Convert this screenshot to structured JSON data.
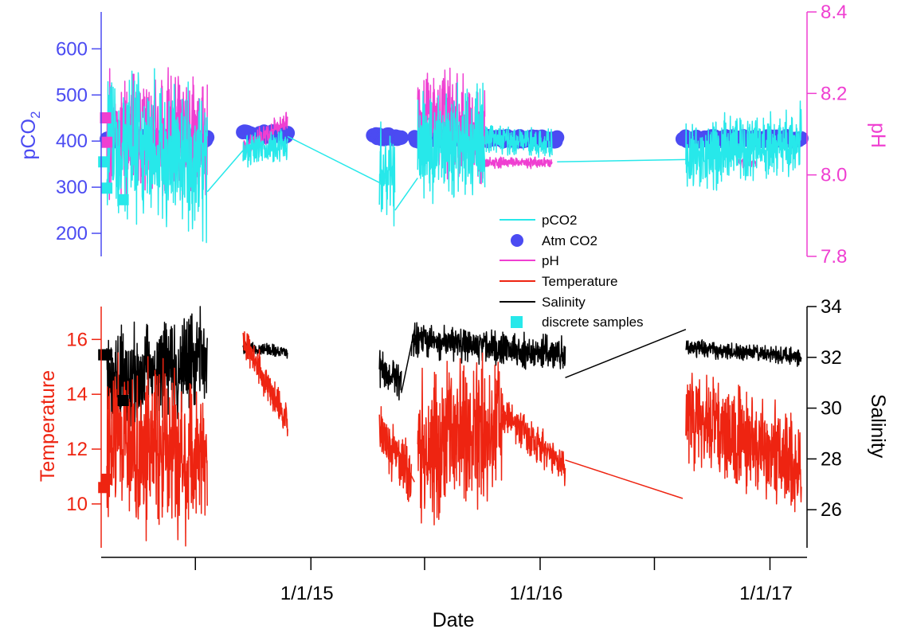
{
  "chart_data": [
    {
      "panel": "top",
      "type": "line",
      "x_unit": "date",
      "yleft": {
        "label_main": "pCO",
        "label_sub": "2",
        "ylim": [
          150,
          680
        ],
        "ticks": [
          200,
          300,
          400,
          500,
          600
        ],
        "color": "#4b4bf2"
      },
      "yright": {
        "label": "pH",
        "ylim": [
          7.8,
          8.4
        ],
        "ticks": [
          "7.8",
          "8.0",
          "8.2",
          "8.4"
        ],
        "color": "#ef3fd1"
      },
      "series": [
        {
          "name": "pCO2",
          "axis": "left",
          "color": "#27e8ea",
          "segments": [
            {
              "start": "2014-02-10",
              "end": "2014-07-20",
              "mean": 370,
              "amp": 200,
              "trend": -40
            },
            {
              "start": "2014-09-15",
              "end": "2014-11-25",
              "mean": 385,
              "amp": 40,
              "trend": 20
            },
            {
              "start": "2015-04-20",
              "end": "2015-05-15",
              "mean": 330,
              "amp": 110,
              "trend": -20
            },
            {
              "start": "2015-06-20",
              "end": "2015-10-05",
              "mean": 390,
              "amp": 150,
              "trend": 10
            },
            {
              "start": "2015-10-05",
              "end": "2016-01-20",
              "mean": 400,
              "amp": 40,
              "trend": -20
            },
            {
              "start": "2016-08-20",
              "end": "2017-02-20",
              "mean": 385,
              "amp": 90,
              "trend": 30
            }
          ]
        },
        {
          "name": "Atm CO2",
          "axis": "left",
          "color": "#4b4bf2",
          "marker": "circle",
          "segments": [
            {
              "start": "2014-02-10",
              "end": "2014-07-20",
              "value": 405
            },
            {
              "start": "2014-09-15",
              "end": "2014-11-25",
              "value": 415
            },
            {
              "start": "2015-04-10",
              "end": "2015-05-25",
              "value": 410
            },
            {
              "start": "2015-06-15",
              "end": "2016-01-28",
              "value": 405
            },
            {
              "start": "2016-08-15",
              "end": "2017-02-20",
              "value": 405
            }
          ]
        },
        {
          "name": "pH",
          "axis": "right",
          "color": "#ef3fd1",
          "segments": [
            {
              "start": "2014-02-10",
              "end": "2014-07-20",
              "mean": 8.1,
              "amp": 0.18,
              "trend": 0
            },
            {
              "start": "2014-09-15",
              "end": "2014-11-25",
              "mean": 8.1,
              "amp": 0.03,
              "trend": 0.07
            },
            {
              "start": "2015-06-20",
              "end": "2015-10-05",
              "mean": 8.13,
              "amp": 0.15,
              "trend": -0.05
            },
            {
              "start": "2015-10-05",
              "end": "2016-01-20",
              "mean": 8.03,
              "amp": 0.015,
              "trend": 0
            },
            {
              "start": "2016-11-10",
              "end": "2016-12-10",
              "mean": 8.03,
              "amp": 0.015,
              "trend": 0
            }
          ]
        }
      ]
    },
    {
      "panel": "bottom",
      "type": "line",
      "x_unit": "date",
      "yleft": {
        "label": "Temperature",
        "ylim": [
          8.4,
          17.2
        ],
        "ticks": [
          10,
          12,
          14,
          16
        ],
        "color": "#ee2411"
      },
      "yright": {
        "label": "Salinity",
        "ylim": [
          24.5,
          34
        ],
        "ticks": [
          26,
          28,
          30,
          32,
          34
        ],
        "color": "#000000"
      },
      "series": [
        {
          "name": "Temperature",
          "axis": "left",
          "color": "#ee2411",
          "segments": [
            {
              "start": "2014-02-10",
              "end": "2014-07-20",
              "mean": 12,
              "amp": 3.5,
              "trend": -1
            },
            {
              "start": "2014-09-15",
              "end": "2014-11-25",
              "mean": 14.5,
              "amp": 0.8,
              "trend": -3
            },
            {
              "start": "2015-04-20",
              "end": "2015-06-10",
              "mean": 11.8,
              "amp": 1.3,
              "trend": -1.5
            },
            {
              "start": "2015-06-20",
              "end": "2015-11-01",
              "mean": 12.5,
              "amp": 3.2,
              "trend": 1
            },
            {
              "start": "2015-11-01",
              "end": "2016-02-10",
              "mean": 12.3,
              "amp": 0.8,
              "trend": -2
            },
            {
              "start": "2016-08-20",
              "end": "2017-02-20",
              "mean": 12.3,
              "amp": 2.2,
              "trend": -2
            }
          ]
        },
        {
          "name": "Salinity",
          "axis": "right",
          "color": "#000000",
          "segments": [
            {
              "start": "2014-02-10",
              "end": "2014-07-20",
              "mean": 31.5,
              "amp": 2.3,
              "trend": 1.2
            },
            {
              "start": "2014-09-15",
              "end": "2014-11-25",
              "mean": 32.3,
              "amp": 0.3,
              "trend": -0.2
            },
            {
              "start": "2015-04-20",
              "end": "2015-05-25",
              "mean": 31.2,
              "amp": 0.9,
              "trend": -0.5
            },
            {
              "start": "2015-06-10",
              "end": "2016-02-10",
              "mean": 32.4,
              "amp": 0.8,
              "trend": -0.6
            },
            {
              "start": "2016-08-20",
              "end": "2017-02-20",
              "mean": 32.2,
              "amp": 0.4,
              "trend": -0.4
            }
          ]
        }
      ],
      "connectors": [
        {
          "series": "Salinity",
          "points": [
            [
              "2015-05-25",
              30.6
            ],
            [
              "2015-06-15",
              33.1
            ]
          ]
        },
        {
          "series": "Salinity",
          "points": [
            [
              "2016-02-10",
              31.2
            ],
            [
              "2016-08-20",
              33.1
            ]
          ]
        },
        {
          "series": "Temperature",
          "points": [
            [
              "2015-05-15",
              12.2
            ],
            [
              "2015-06-15",
              10.8
            ]
          ]
        },
        {
          "series": "Temperature",
          "points": [
            [
              "2016-02-10",
              11.6
            ],
            [
              "2016-08-15",
              10.2
            ]
          ]
        }
      ]
    }
  ],
  "discrete_samples": {
    "name": "discrete samples",
    "color": "#27e8ea",
    "pco2": [
      [
        "2014-02-05",
        355
      ],
      [
        "2014-02-10",
        298
      ],
      [
        "2014-03-08",
        273
      ]
    ],
    "ph": [
      [
        "2014-02-08",
        8.14
      ],
      [
        "2014-02-10",
        8.08
      ]
    ],
    "temperature": [
      [
        "2014-02-05",
        10.6
      ],
      [
        "2014-02-10",
        10.9
      ]
    ],
    "salinity": [
      [
        "2014-02-05",
        32.1
      ],
      [
        "2014-02-10",
        32.1
      ],
      [
        "2014-03-08",
        30.3
      ]
    ]
  },
  "x_axis": {
    "label": "Date",
    "range": [
      "2014-02-01",
      "2017-03-01"
    ],
    "major_ticks": [
      "1/1/15",
      "1/1/16",
      "1/1/17"
    ],
    "major_tick_dates": [
      "2015-01-01",
      "2016-01-01",
      "2017-01-01"
    ],
    "minor_tick_dates": [
      "2014-07-01",
      "2015-07-01",
      "2016-07-01"
    ]
  },
  "legend": {
    "position": "center",
    "entries": [
      {
        "label": "pCO2",
        "kind": "line",
        "color": "#27e8ea"
      },
      {
        "label": "Atm CO2",
        "kind": "circle",
        "color": "#4b4bf2"
      },
      {
        "label": "pH",
        "kind": "line",
        "color": "#ef3fd1"
      },
      {
        "label": "Temperature",
        "kind": "line",
        "color": "#ee2411"
      },
      {
        "label": "Salinity",
        "kind": "line",
        "color": "#000000"
      },
      {
        "label": "discrete samples",
        "kind": "square",
        "color": "#27e8ea"
      }
    ]
  }
}
